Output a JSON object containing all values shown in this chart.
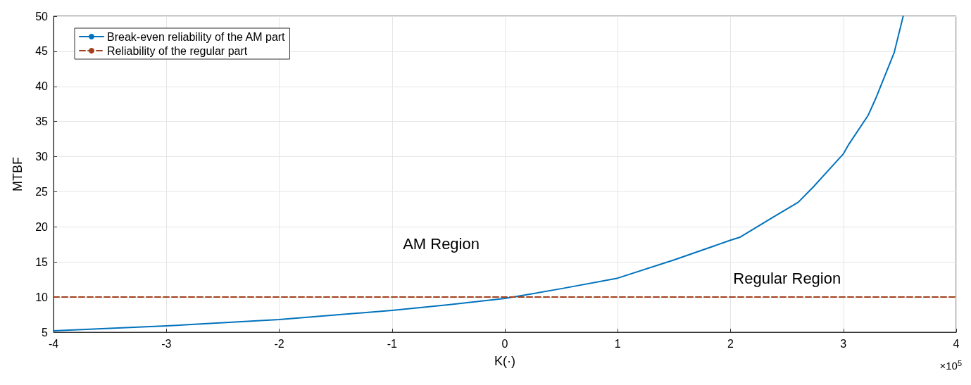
{
  "chart_data": {
    "type": "line",
    "xlabel": "K(·)",
    "ylabel": "MTBF",
    "xlim": [
      -4,
      4
    ],
    "xticks": [
      -4,
      -3,
      -2,
      -1,
      0,
      1,
      2,
      3,
      4
    ],
    "ylim": [
      5,
      50
    ],
    "yticks": [
      5,
      10,
      15,
      20,
      25,
      30,
      35,
      40,
      45,
      50
    ],
    "grid": true,
    "legend": "top left",
    "marker": "none",
    "series": [
      {
        "name": "Break-even reliability of the AM part",
        "color": "#0072bd",
        "line_style": "solid",
        "x": [
          -4,
          -3,
          -2,
          -1,
          -0.5,
          0,
          0.5,
          1,
          1.5,
          2,
          2.08,
          2.4,
          2.6,
          2.74,
          3,
          3.05,
          3.22,
          3.29,
          3.45,
          3.53
        ],
        "values": [
          5.2,
          5.9,
          6.8,
          8.1,
          8.9,
          9.8,
          11.2,
          12.7,
          15.3,
          18.1,
          18.5,
          21.6,
          23.5,
          25.8,
          30.4,
          31.8,
          35.9,
          38.4,
          44.8,
          50
        ]
      },
      {
        "name": "Reliability of the regular part",
        "color": "#a2401c",
        "line_style": "dashed",
        "x": [
          -4,
          4
        ],
        "values": [
          10,
          10
        ]
      }
    ],
    "annotations": [
      "AM Region",
      "Regular Region",
      "×10$^{5}$"
    ]
  }
}
